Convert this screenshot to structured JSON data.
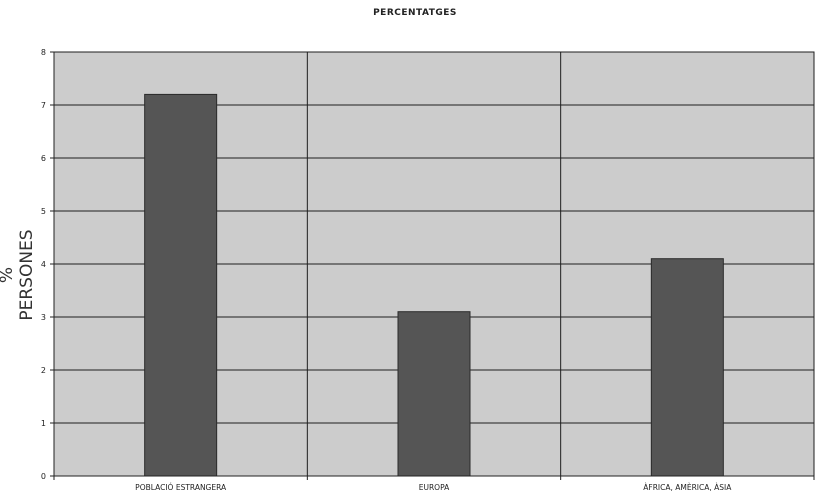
{
  "chart_data": {
    "type": "bar",
    "title": "PERCENTATGES",
    "xlabel": "",
    "ylabel": "% PERSONES",
    "categories": [
      "POBLACIÓ ESTRANGERA",
      "EUROPA",
      "ÀFRICA, AMÈRICA, ÀSIA"
    ],
    "values": [
      7.2,
      3.1,
      4.1
    ],
    "ylim": [
      0,
      8
    ],
    "yticks": [
      0,
      1,
      2,
      3,
      4,
      5,
      6,
      7,
      8
    ],
    "grid": true,
    "legend": "none",
    "colors": {
      "plot_background": "#cccccc",
      "bar": "#555555",
      "bar_border": "#2a2a2a",
      "grid": "#1e1e1e"
    }
  }
}
